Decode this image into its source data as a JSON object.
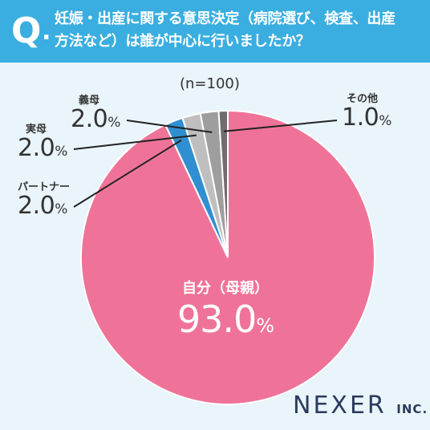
{
  "header": {
    "q_mark": "Q",
    "q_dot": ".",
    "question_line1": "妊娠・出産に関する意思決定（病院選び、検査、出産",
    "question_line2": "方法など）は誰が中心に行いましたか？"
  },
  "n_label": "(n=100)",
  "logo": {
    "main": "NEXER",
    "suffix": "INC."
  },
  "colors": {
    "header": "#3aaee0",
    "background": "#e9f4fb",
    "self": "#ef7398",
    "partner": "#2f8fd0",
    "mother": "#bfbfbf",
    "mother_in_law": "#9e9e9e",
    "other": "#6e6e6e"
  },
  "chart_data": {
    "type": "pie",
    "n": 100,
    "unit": "%",
    "slices": [
      {
        "label": "自分（母親）",
        "value": 93.0,
        "display": "93.0",
        "color": "#ef7398"
      },
      {
        "label": "パートナー",
        "value": 2.0,
        "display": "2.0",
        "color": "#2f8fd0"
      },
      {
        "label": "実母",
        "value": 2.0,
        "display": "2.0",
        "color": "#bfbfbf"
      },
      {
        "label": "義母",
        "value": 2.0,
        "display": "2.0",
        "color": "#9e9e9e"
      },
      {
        "label": "その他",
        "value": 1.0,
        "display": "1.0",
        "color": "#6e6e6e"
      }
    ]
  }
}
